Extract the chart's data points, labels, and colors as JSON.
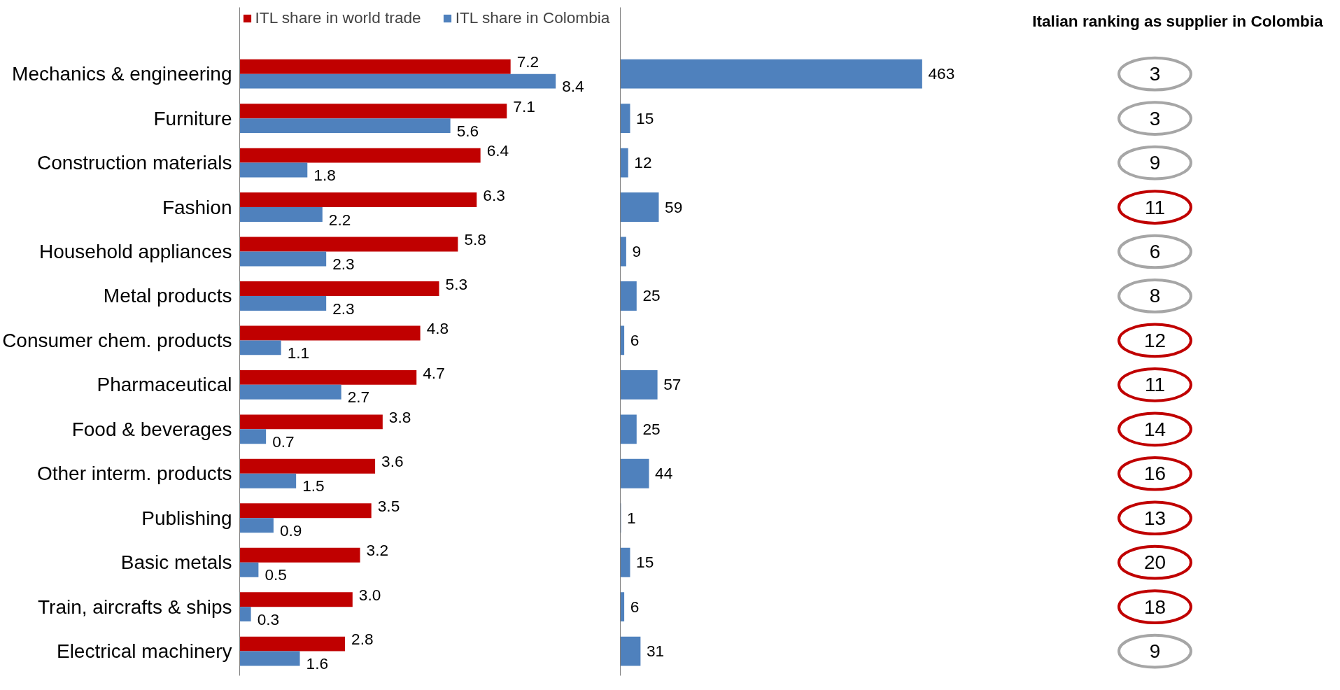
{
  "chart_data": [
    {
      "type": "bar",
      "orientation": "horizontal",
      "categories": [
        "Mechanics & engineering",
        "Furniture",
        "Construction materials",
        "Fashion",
        "Household appliances",
        "Metal products",
        "Consumer chem. products",
        "Pharmaceutical",
        "Food & beverages",
        "Other interm. products",
        "Publishing",
        "Basic metals",
        "Train, aircrafts & ships",
        "Electrical machinery"
      ],
      "series": [
        {
          "name": "ITL share in world trade",
          "color": "#c00000",
          "values": [
            7.2,
            7.1,
            6.4,
            6.3,
            5.8,
            5.3,
            4.8,
            4.7,
            3.8,
            3.6,
            3.5,
            3.2,
            3.0,
            2.8
          ],
          "value_labels": [
            "7.2",
            "7.1",
            "6.4",
            "6.3",
            "5.8",
            "5.3",
            "4.8",
            "4.7",
            "3.8",
            "3.6",
            "3.5",
            "3.2",
            "3.0",
            "2.8"
          ]
        },
        {
          "name": "ITL share in Colombia",
          "color": "#4f81bd",
          "values": [
            8.4,
            5.6,
            1.8,
            2.2,
            2.3,
            2.3,
            1.1,
            2.7,
            0.7,
            1.5,
            0.9,
            0.5,
            0.3,
            1.6
          ]
        }
      ],
      "data_labels": true,
      "legend": "top",
      "grid": false
    },
    {
      "type": "bar",
      "orientation": "horizontal",
      "categories": [
        null,
        null,
        null,
        null,
        null,
        null,
        null,
        null,
        null,
        null,
        null,
        null,
        null,
        null
      ],
      "series": [
        {
          "color": "#4f81bd",
          "values": [
            463,
            15,
            12,
            59,
            9,
            25,
            6,
            57,
            25,
            44,
            1,
            15,
            6,
            31
          ]
        }
      ],
      "data_labels": true,
      "grid": false
    },
    {
      "type": "other",
      "title": "Italian ranking as supplier in Colombia",
      "categories": [
        null,
        null,
        null,
        null,
        null,
        null,
        null,
        null,
        null,
        null,
        null,
        null,
        null,
        null
      ],
      "values": [
        3,
        3,
        9,
        11,
        6,
        8,
        12,
        11,
        14,
        16,
        13,
        20,
        18,
        9
      ],
      "data_labels": true,
      "colors": [
        "#a6a6a6",
        "#a6a6a6",
        "#a6a6a6",
        "#c00000",
        "#a6a6a6",
        "#a6a6a6",
        "#c00000",
        "#c00000",
        "#c00000",
        "#c00000",
        "#c00000",
        "#c00000",
        "#c00000",
        "#a6a6a6"
      ]
    }
  ]
}
